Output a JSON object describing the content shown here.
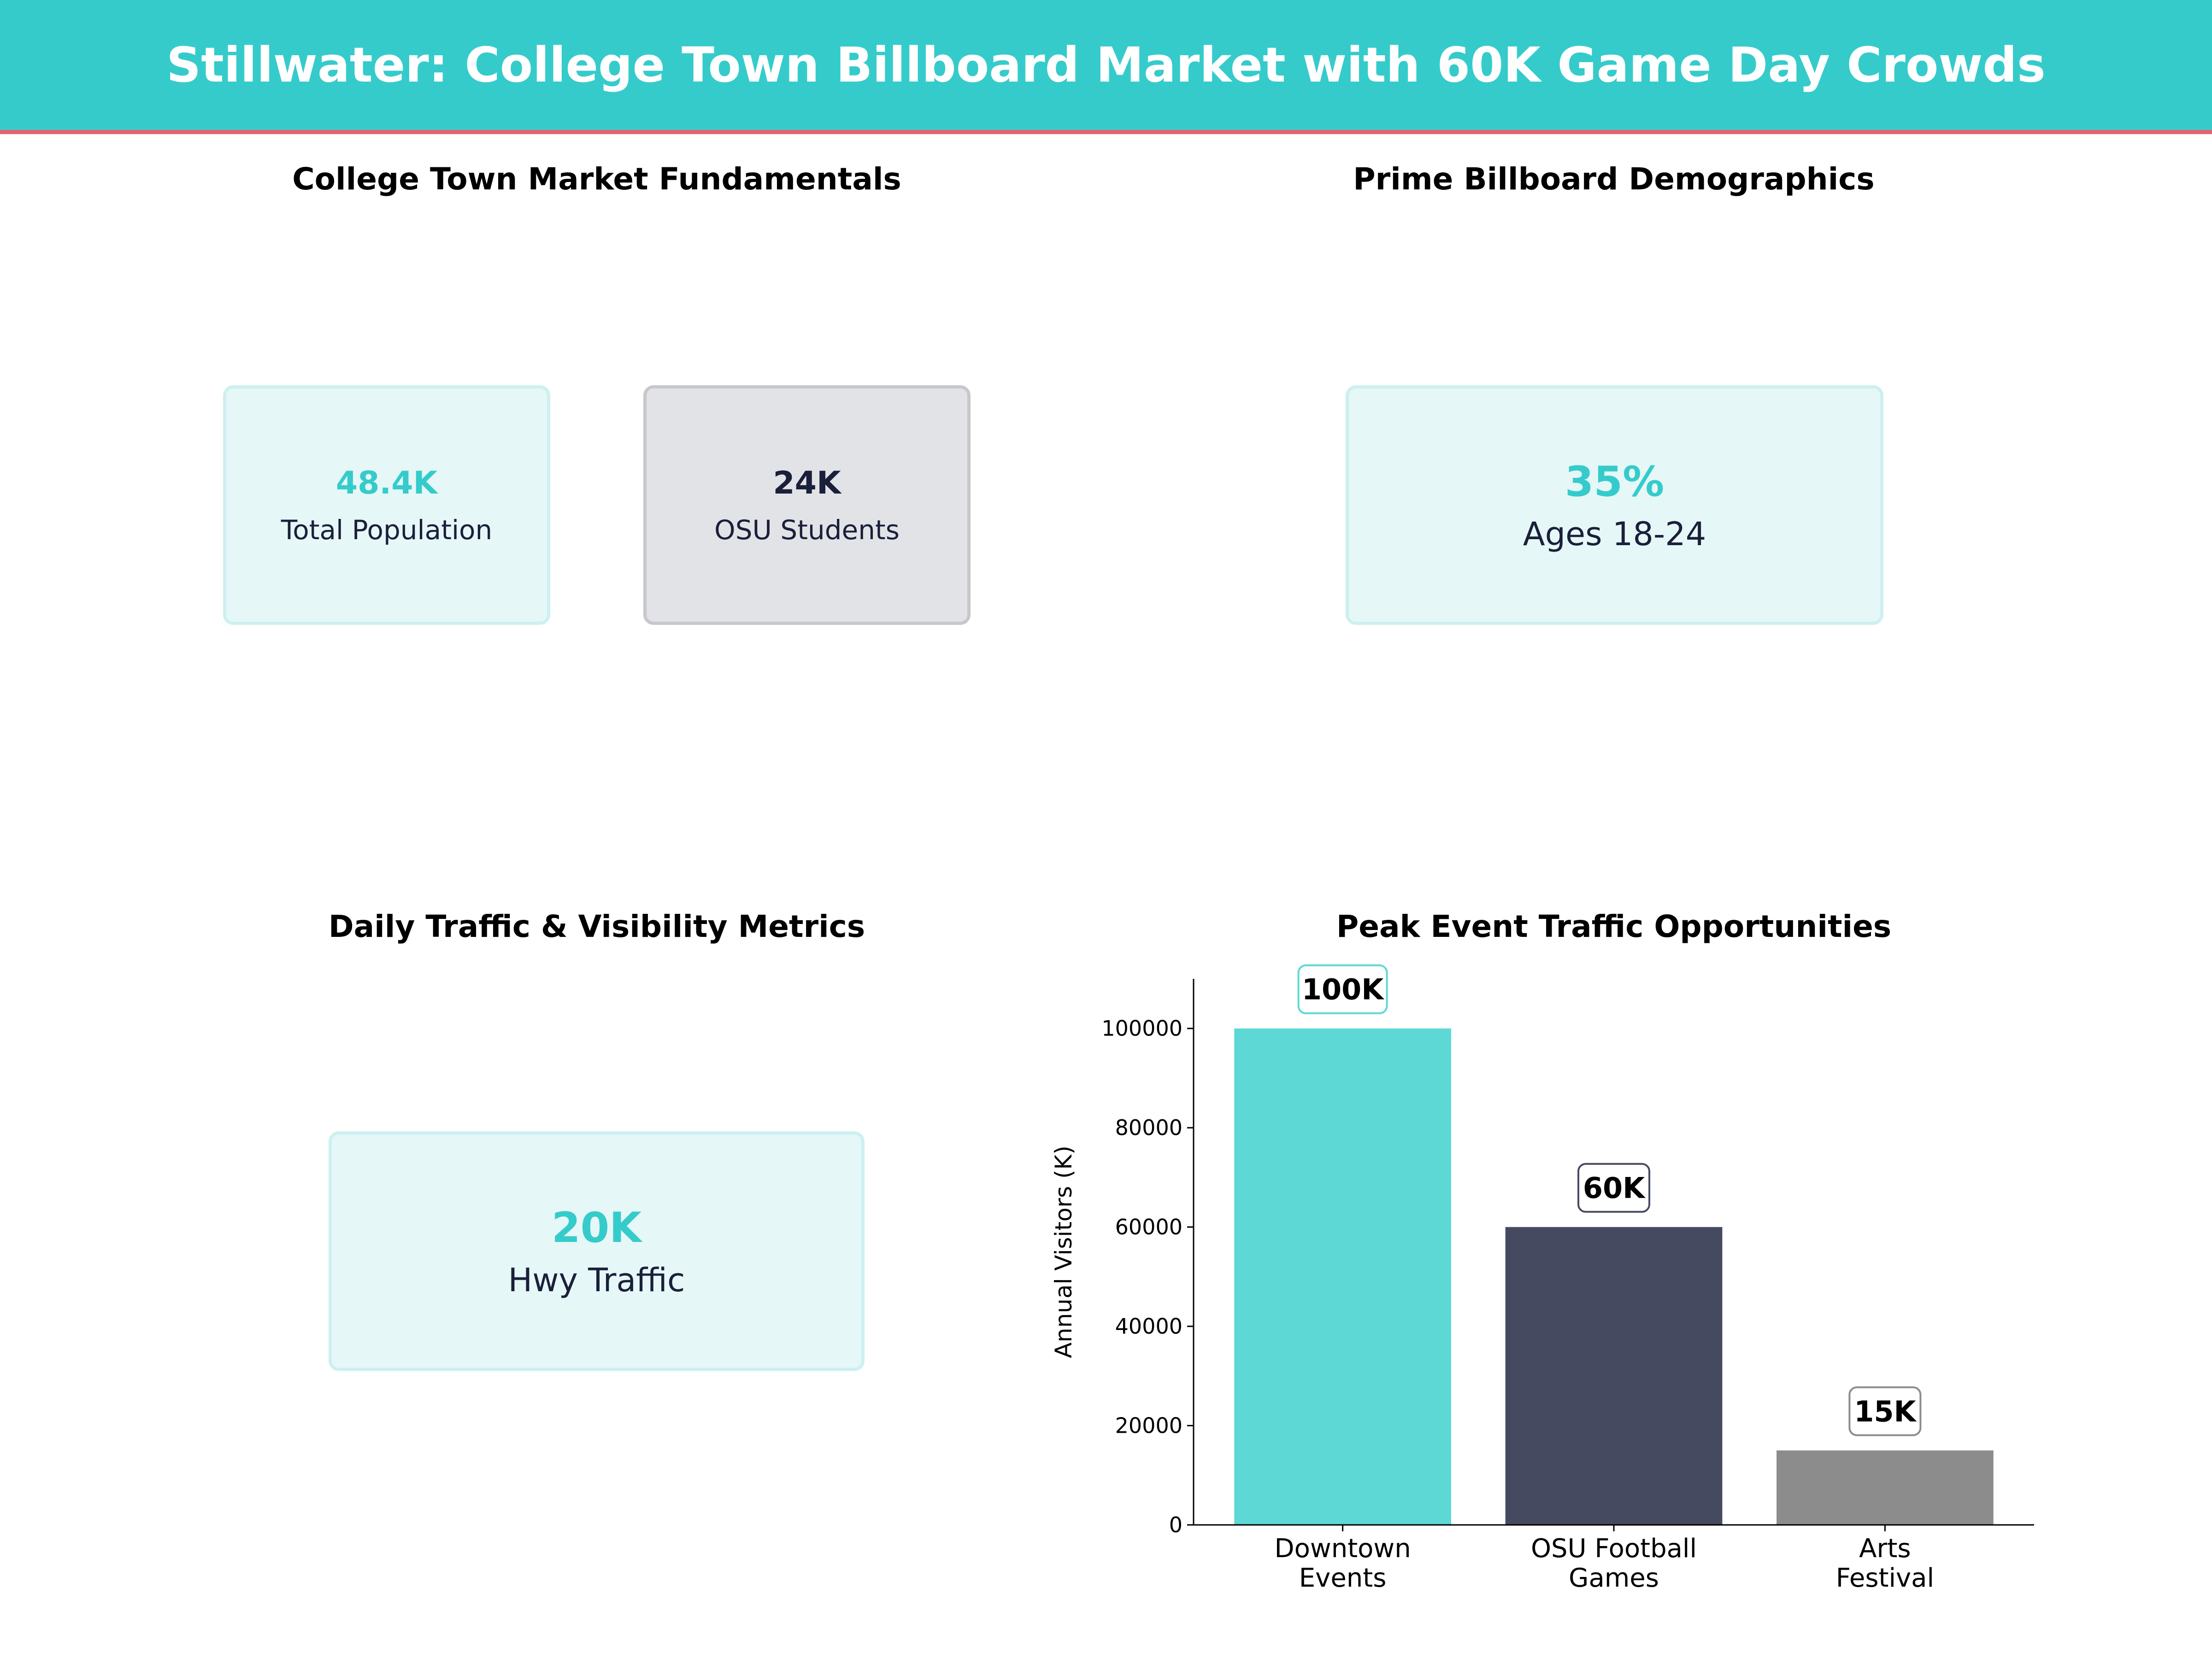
{
  "title": "Stillwater: College Town Billboard Market with 60K Game Day Crowds",
  "colors": {
    "header": "#36cbcb",
    "accent_line": "#e8606e",
    "teal": "#36cbcb",
    "navy": "#1a1f3a"
  },
  "panels": {
    "fundamentals": {
      "title": "College Town Market Fundamentals",
      "cards": [
        {
          "value": "48.4K",
          "label": "Total Population"
        },
        {
          "value": "24K",
          "label": "OSU Students"
        }
      ]
    },
    "demographics": {
      "title": "Prime Billboard Demographics",
      "cards": [
        {
          "value": "35%",
          "label": "Ages 18-24"
        }
      ]
    },
    "traffic": {
      "title": "Daily Traffic & Visibility Metrics",
      "cards": [
        {
          "value": "20K",
          "label": "Hwy Traffic"
        }
      ]
    }
  },
  "chart_data": {
    "type": "bar",
    "title": "Peak Event Traffic Opportunities",
    "categories": [
      [
        "Downtown",
        "Events"
      ],
      [
        "OSU Football",
        "Games"
      ],
      [
        "Arts",
        "Festival"
      ]
    ],
    "values": [
      100000,
      60000,
      15000
    ],
    "data_labels": [
      "100K",
      "60K",
      "15K"
    ],
    "bar_colors": [
      "#5dd8d5",
      "#464a60",
      "#8c8c8c"
    ],
    "label_border_colors": [
      "#5dd8d5",
      "#464a60",
      "#8c8c8c"
    ],
    "xlabel": "",
    "ylabel": "Annual Visitors (K)",
    "ylim": [
      0,
      110000
    ],
    "yticks": [
      0,
      20000,
      40000,
      60000,
      80000,
      100000
    ],
    "grid": false
  }
}
